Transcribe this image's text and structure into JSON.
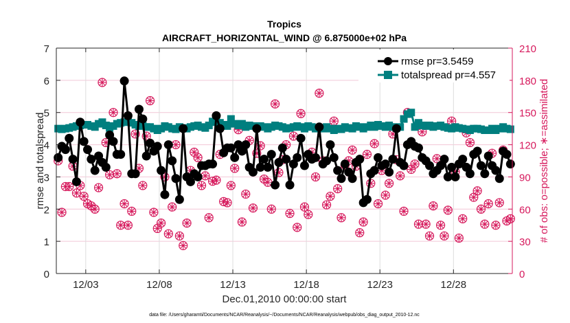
{
  "chart_data": {
    "type": "line",
    "title": "Tropics",
    "subtitle": "AIRCRAFT_HORIZONTAL_WIND @ 6.875000e+02 hPa",
    "xlabel": "Dec.01,2010 00:00:00 start",
    "ylabel": "rmse and totalspread",
    "ylabel_right": "# of obs: o=possible; ∗=assimilated",
    "footnote": "data file: /Users/gharamti/Documents/NCAR/Reanalysis/~/Documents/NCAR/Reanalysis/webpub/obs_diag_output_2010-12.nc",
    "xlim_days": [
      0,
      31
    ],
    "ylim": [
      0,
      7
    ],
    "ylim_right": [
      0,
      210
    ],
    "yticks": [
      0,
      1,
      2,
      3,
      4,
      5,
      6,
      7
    ],
    "yticks_right": [
      0,
      30,
      60,
      90,
      120,
      150,
      180,
      210
    ],
    "xticks": [
      {
        "day": 2,
        "label": "12/03"
      },
      {
        "day": 7,
        "label": "12/08"
      },
      {
        "day": 12,
        "label": "12/13"
      },
      {
        "day": 17,
        "label": "12/18"
      },
      {
        "day": 22,
        "label": "12/23"
      },
      {
        "day": 27,
        "label": "12/28"
      }
    ],
    "grid": true,
    "legend_position": "top-right",
    "x_step_days": 0.25,
    "x_start_day": 0.125,
    "series": [
      {
        "name": "rmse pr=3.5459",
        "axis": "left",
        "color": "#000000",
        "marker": "circle",
        "values": [
          3.6,
          3.95,
          3.85,
          4.2,
          3.55,
          2.85,
          4.7,
          4.1,
          3.85,
          3.55,
          3.2,
          3.65,
          3.45,
          3.3,
          4.3,
          4.1,
          3.7,
          3.7,
          5.98,
          4.9,
          3.1,
          3.1,
          5.1,
          4.8,
          3.65,
          4.05,
          3.8,
          3.95,
          3.2,
          2.45,
          4.0,
          3.5,
          2.95,
          2.3,
          4.5,
          3.0,
          2.85,
          3.1,
          3.0,
          3.35,
          3.35,
          3.4,
          3.4,
          4.9,
          4.5,
          3.75,
          3.9,
          3.9,
          3.6,
          4.0,
          3.8,
          4.0,
          3.3,
          3.15,
          4.5,
          3.3,
          3.55,
          3.3,
          3.7,
          2.75,
          3.45,
          3.9,
          3.55,
          2.75,
          3.4,
          3.6,
          4.2,
          3.35,
          3.7,
          3.55,
          3.6,
          4.55,
          3.4,
          3.5,
          4.0,
          3.6,
          3.2,
          2.95,
          3.4,
          3.15,
          2.95,
          3.45,
          3.55,
          2.2,
          2.3,
          3.1,
          3.2,
          3.6,
          3.35,
          3.4,
          3.15,
          3.55,
          4.5,
          3.45,
          3.35,
          4.0,
          4.1,
          3.95,
          3.9,
          3.6,
          3.5,
          3.35,
          3.1,
          3.2,
          3.35,
          3.55,
          3.0,
          3.3,
          3.0,
          3.4,
          3.55,
          3.3,
          3.1,
          3.7,
          3.8,
          3.35,
          3.1,
          3.65,
          3.35,
          3.2,
          2.95,
          3.8,
          3.7,
          3.4
        ]
      },
      {
        "name": "totalspread pr=4.557",
        "axis": "left",
        "color": "#007f7f",
        "marker": "square",
        "values": [
          4.5,
          4.48,
          4.5,
          4.52,
          4.55,
          4.58,
          4.6,
          4.62,
          4.62,
          4.58,
          4.55,
          4.65,
          4.7,
          4.6,
          4.52,
          4.58,
          4.65,
          4.68,
          4.7,
          4.72,
          4.68,
          4.62,
          4.58,
          4.6,
          4.55,
          4.55,
          4.5,
          4.45,
          4.5,
          4.58,
          4.55,
          4.5,
          4.48,
          4.55,
          4.52,
          4.5,
          4.55,
          4.58,
          4.6,
          4.55,
          4.52,
          4.6,
          4.72,
          4.7,
          4.68,
          4.62,
          4.58,
          4.8,
          4.65,
          4.6,
          4.65,
          4.55,
          4.6,
          4.58,
          4.55,
          4.58,
          4.55,
          4.5,
          4.55,
          4.6,
          4.58,
          4.55,
          4.5,
          4.52,
          4.55,
          4.58,
          4.55,
          4.5,
          4.58,
          4.55,
          4.5,
          4.52,
          4.5,
          4.55,
          4.5,
          4.45,
          4.5,
          4.48,
          4.55,
          4.52,
          4.5,
          4.58,
          4.55,
          4.5,
          4.55,
          4.6,
          4.55,
          4.62,
          4.58,
          4.55,
          4.6,
          4.55,
          4.52,
          4.55,
          4.8,
          4.95,
          5.0,
          4.55,
          4.68,
          4.6,
          4.58,
          4.6,
          4.55,
          4.58,
          4.6,
          4.55,
          4.52,
          4.5,
          4.55,
          4.52,
          4.5,
          4.48,
          4.45,
          4.5,
          4.5,
          4.48,
          4.45,
          4.45,
          4.5,
          4.45,
          4.5,
          4.55,
          4.5,
          4.48
        ]
      },
      {
        "name": "possible",
        "axis": "right",
        "color": "#d6195c",
        "marker": "circle-open",
        "values": [
          105,
          57,
          81,
          81,
          100,
          75,
          82,
          72,
          65,
          63,
          60,
          80,
          178,
          122,
          92,
          150,
          93,
          45,
          65,
          45,
          58,
          130,
          98,
          82,
          128,
          161,
          57,
          42,
          47,
          90,
          37,
          62,
          120,
          35,
          26,
          47,
          96,
          113,
          108,
          82,
          91,
          52,
          86,
          87,
          111,
          67,
          66,
          82,
          98,
          134,
          48,
          74,
          124,
          61,
          112,
          119,
          88,
          85,
          60,
          158,
          94,
          106,
          120,
          56,
          128,
          43,
          149,
          62,
          55,
          113,
          90,
          168,
          105,
          64,
          72,
          142,
          79,
          52,
          101,
          105,
          115,
          100,
          38,
          48,
          111,
          84,
          121,
          65,
          96,
          73,
          84,
          130,
          106,
          91,
          58,
          150,
          97,
          102,
          46,
          132,
          46,
          35,
          63,
          107,
          45,
          35,
          59,
          142,
          95,
          33,
          51,
          131,
          122,
          71,
          77,
          60,
          46,
          65,
          112,
          45,
          66,
          115,
          49,
          51
        ]
      },
      {
        "name": "assimilated",
        "axis": "right",
        "color": "#d6195c",
        "marker": "asterisk",
        "values": [
          105,
          57,
          81,
          81,
          100,
          75,
          82,
          72,
          65,
          63,
          60,
          80,
          178,
          122,
          92,
          150,
          93,
          45,
          65,
          45,
          58,
          130,
          98,
          82,
          128,
          161,
          57,
          42,
          47,
          90,
          37,
          62,
          120,
          35,
          26,
          47,
          96,
          113,
          108,
          82,
          91,
          52,
          86,
          87,
          111,
          67,
          66,
          82,
          98,
          134,
          48,
          74,
          124,
          61,
          112,
          119,
          88,
          85,
          60,
          158,
          94,
          106,
          120,
          56,
          128,
          43,
          149,
          62,
          55,
          113,
          90,
          168,
          105,
          64,
          72,
          142,
          79,
          52,
          101,
          105,
          115,
          100,
          38,
          48,
          111,
          84,
          121,
          65,
          96,
          73,
          84,
          130,
          106,
          91,
          58,
          150,
          97,
          102,
          46,
          132,
          46,
          35,
          63,
          107,
          45,
          35,
          59,
          142,
          95,
          33,
          51,
          131,
          122,
          71,
          77,
          60,
          46,
          65,
          112,
          45,
          66,
          115,
          49,
          51
        ]
      }
    ]
  }
}
